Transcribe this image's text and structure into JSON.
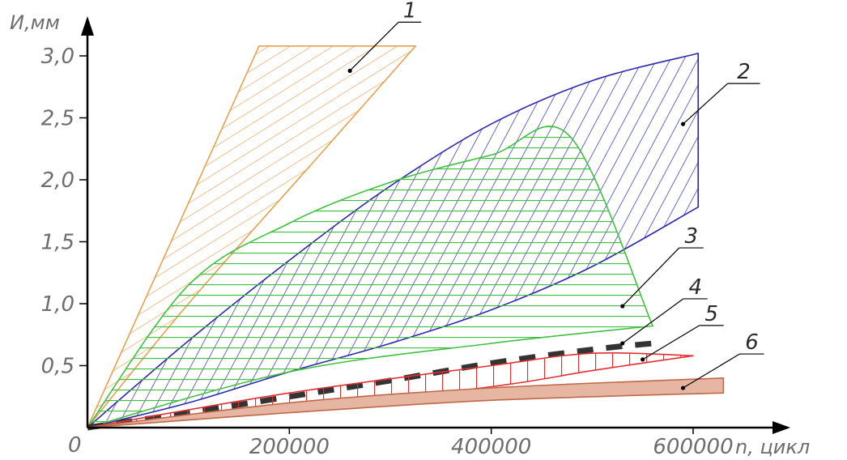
{
  "chart_data": {
    "type": "area",
    "xlabel": "n, цикл",
    "ylabel": "И,мм",
    "origin_label": "0",
    "x_ticks": [
      {
        "value": 200000,
        "label": "200000"
      },
      {
        "value": 400000,
        "label": "400000"
      },
      {
        "value": 600000,
        "label": "600000"
      }
    ],
    "y_ticks": [
      {
        "value": 0.5,
        "label": "0,5"
      },
      {
        "value": 1.0,
        "label": "1,0"
      },
      {
        "value": 1.5,
        "label": "1,5"
      },
      {
        "value": 2.0,
        "label": "2,0"
      },
      {
        "value": 2.5,
        "label": "2,5"
      },
      {
        "value": 3.0,
        "label": "3,0"
      }
    ],
    "xlim": [
      0,
      700000
    ],
    "ylim": [
      0,
      3.3
    ],
    "grid": false,
    "series": [
      {
        "name": "1",
        "color": "#e8a050",
        "hatch": "diagonal",
        "upper": [
          [
            0,
            0
          ],
          [
            170000,
            3.08
          ]
        ],
        "lower": [
          [
            0,
            0
          ],
          [
            100000,
            1.0
          ],
          [
            230000,
            2.2
          ],
          [
            325000,
            3.08
          ]
        ]
      },
      {
        "name": "2",
        "color": "#2a2ab0",
        "hatch": "steep-diagonal",
        "upper": [
          [
            0,
            0
          ],
          [
            100000,
            0.7
          ],
          [
            200000,
            1.35
          ],
          [
            300000,
            1.95
          ],
          [
            400000,
            2.45
          ],
          [
            500000,
            2.8
          ],
          [
            605000,
            3.02
          ]
        ],
        "lower": [
          [
            0,
            0
          ],
          [
            100000,
            0.2
          ],
          [
            200000,
            0.45
          ],
          [
            300000,
            0.68
          ],
          [
            400000,
            0.95
          ],
          [
            500000,
            1.3
          ],
          [
            605000,
            1.78
          ]
        ]
      },
      {
        "name": "3",
        "color": "#40c040",
        "hatch": "horizontal",
        "upper": [
          [
            0,
            0
          ],
          [
            100000,
            1.15
          ],
          [
            200000,
            1.65
          ],
          [
            300000,
            1.98
          ],
          [
            400000,
            2.2
          ],
          [
            478000,
            2.35
          ],
          [
            560000,
            0.82
          ]
        ],
        "lower": [
          [
            0,
            0
          ],
          [
            200000,
            0.45
          ],
          [
            400000,
            0.68
          ],
          [
            560000,
            0.82
          ]
        ]
      },
      {
        "name": "4",
        "color": "#333333",
        "style": "dashed-band",
        "values": [
          [
            0,
            0
          ],
          [
            100000,
            0.12
          ],
          [
            200000,
            0.25
          ],
          [
            300000,
            0.38
          ],
          [
            400000,
            0.52
          ],
          [
            500000,
            0.63
          ],
          [
            560000,
            0.68
          ]
        ]
      },
      {
        "name": "5",
        "color": "#e03030",
        "hatch": "vertical",
        "upper": [
          [
            0,
            0
          ],
          [
            200000,
            0.28
          ],
          [
            400000,
            0.5
          ],
          [
            500000,
            0.6
          ],
          [
            600000,
            0.58
          ]
        ],
        "lower": [
          [
            0,
            0
          ],
          [
            200000,
            0.15
          ],
          [
            400000,
            0.33
          ],
          [
            500000,
            0.46
          ],
          [
            600000,
            0.58
          ]
        ]
      },
      {
        "name": "6",
        "color": "#c0684a",
        "fill": "#e6b6a2",
        "hatch": "solid",
        "upper": [
          [
            0,
            0
          ],
          [
            200000,
            0.2
          ],
          [
            400000,
            0.32
          ],
          [
            630000,
            0.4
          ]
        ],
        "lower": [
          [
            0,
            0
          ],
          [
            200000,
            0.12
          ],
          [
            400000,
            0.22
          ],
          [
            630000,
            0.28
          ]
        ]
      }
    ],
    "annotations": [
      {
        "label": "1",
        "target": [
          260000,
          2.88
        ]
      },
      {
        "label": "2",
        "target": [
          590000,
          2.45
        ]
      },
      {
        "label": "3",
        "target": [
          530000,
          0.98
        ]
      },
      {
        "label": "4",
        "target": [
          530000,
          0.68
        ]
      },
      {
        "label": "5",
        "target": [
          550000,
          0.55
        ]
      },
      {
        "label": "6",
        "target": [
          590000,
          0.32
        ]
      }
    ]
  }
}
